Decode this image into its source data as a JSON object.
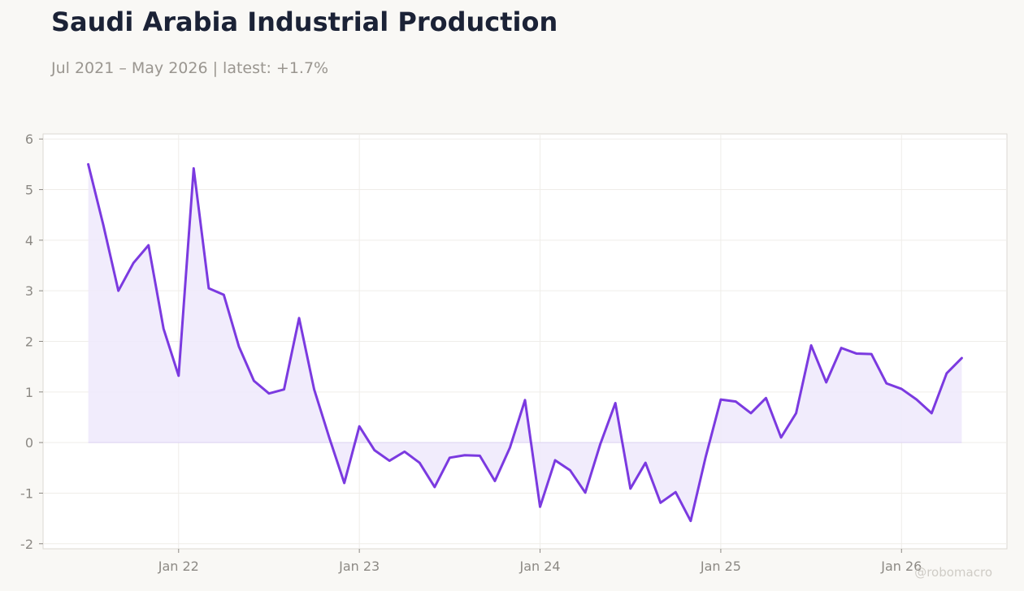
{
  "header": {
    "title": "Saudi Arabia Industrial Production",
    "subtitle": "Jul 2021 – May 2026 | latest: +1.7%"
  },
  "watermark": "@robomacro",
  "colors": {
    "line": "#7b3ae0",
    "fill": "#efe9fb",
    "title": "#1b2236",
    "subtitle": "#9a9690",
    "background": "#f9f8f5"
  },
  "chart_data": {
    "type": "area",
    "title": "Saudi Arabia Industrial Production",
    "xlabel": "",
    "ylabel": "",
    "ylim": [
      -2.1,
      6.1
    ],
    "yticks": [
      -2,
      -1,
      0,
      1,
      2,
      3,
      4,
      5,
      6
    ],
    "xticks": [
      {
        "label": "Jan 22",
        "date": "2022-01"
      },
      {
        "label": "Jan 23",
        "date": "2023-01"
      },
      {
        "label": "Jan 24",
        "date": "2024-01"
      },
      {
        "label": "Jan 25",
        "date": "2025-01"
      },
      {
        "label": "Jan 26",
        "date": "2026-01"
      }
    ],
    "grid": true,
    "series": [
      {
        "x": [
          "2021-07",
          "2021-08",
          "2021-09",
          "2021-10",
          "2021-11",
          "2021-12",
          "2022-01",
          "2022-02",
          "2022-03",
          "2022-04",
          "2022-05",
          "2022-06",
          "2022-07",
          "2022-08",
          "2022-09",
          "2022-10",
          "2022-11",
          "2022-12",
          "2023-01",
          "2023-02",
          "2023-03",
          "2023-04",
          "2023-05",
          "2023-06",
          "2023-07",
          "2023-08",
          "2023-09",
          "2023-10",
          "2023-11",
          "2023-12",
          "2024-01",
          "2024-02",
          "2024-03",
          "2024-04",
          "2024-05",
          "2024-06",
          "2024-07",
          "2024-08",
          "2024-09",
          "2024-10",
          "2024-11",
          "2024-12",
          "2025-01",
          "2025-02",
          "2025-03",
          "2025-04",
          "2025-05",
          "2025-06",
          "2025-07",
          "2025-08",
          "2025-09",
          "2025-10",
          "2025-11",
          "2025-12",
          "2026-01",
          "2026-02",
          "2026-03",
          "2026-04",
          "2026-05"
        ],
        "values": [
          5.5,
          4.3,
          3.0,
          3.55,
          3.9,
          2.25,
          1.32,
          5.42,
          3.05,
          2.92,
          1.9,
          1.22,
          0.97,
          1.05,
          2.46,
          1.05,
          0.1,
          -0.8,
          0.32,
          -0.15,
          -0.36,
          -0.18,
          -0.4,
          -0.88,
          -0.3,
          -0.25,
          -0.26,
          -0.76,
          -0.1,
          0.84,
          -1.27,
          -0.35,
          -0.55,
          -0.99,
          -0.03,
          0.78,
          -0.91,
          -0.4,
          -1.19,
          -0.98,
          -1.55,
          -0.28,
          0.85,
          0.81,
          0.58,
          0.88,
          0.1,
          0.58,
          1.92,
          1.19,
          1.87,
          1.76,
          1.75,
          1.17,
          1.06,
          0.85,
          0.58,
          1.37,
          1.67
        ]
      }
    ]
  }
}
